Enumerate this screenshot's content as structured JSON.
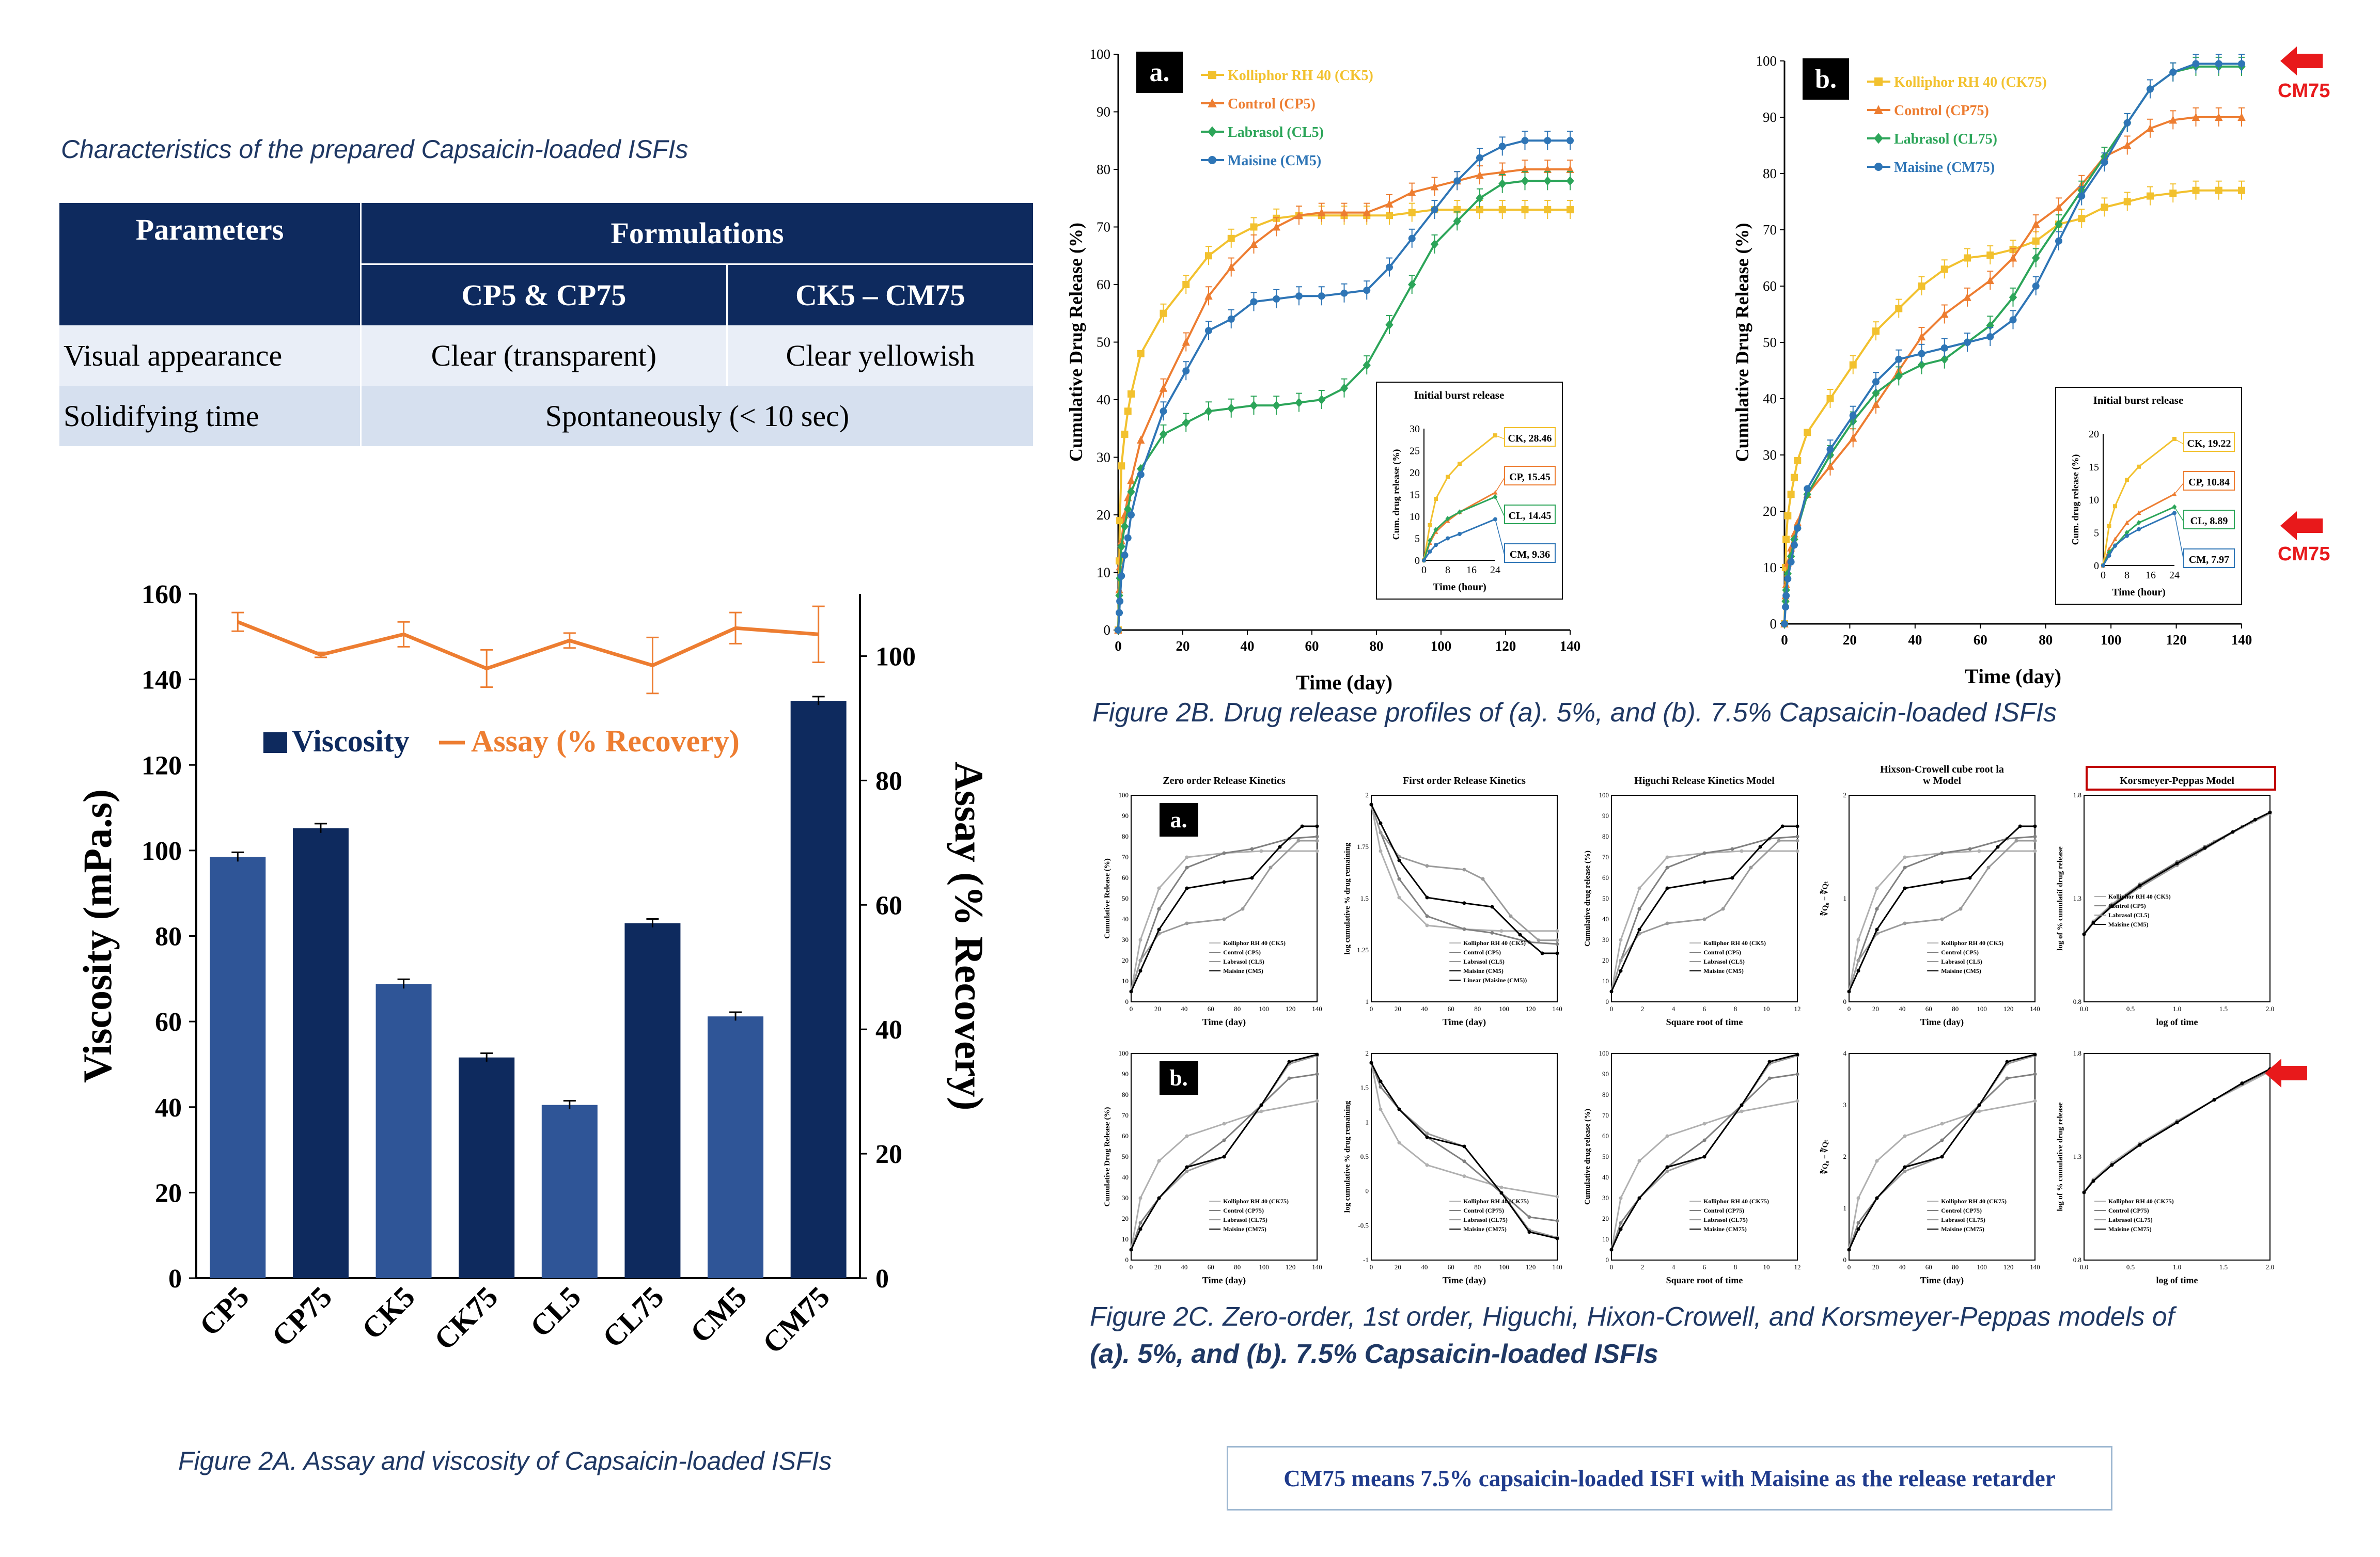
{
  "table": {
    "caption": "Characteristics of the prepared Capsaicin-loaded ISFIs",
    "h_parameters": "Parameters",
    "h_formulations": "Formulations",
    "h_col1": "CP5 & CP75",
    "h_col2": "CK5 – CM75",
    "rows": [
      {
        "param": "Visual appearance",
        "c1": "Clear (transparent)",
        "c2": "Clear yellowish"
      },
      {
        "param": "Solidifying time",
        "merged": "Spontaneously (< 10 sec)"
      }
    ]
  },
  "captions": {
    "fig2a": "Figure 2A. Assay and viscosity of Capsaicin-loaded ISFIs",
    "fig2b": "Figure 2B. Drug release profiles of (a). 5%, and (b). 7.5% Capsaicin-loaded ISFIs",
    "fig2c_line1": "Figure 2C. Zero-order, 1st order, Higuchi, Hixon-Crowell, and Korsmeyer-Peppas models of",
    "fig2c_line2": "(a). 5%, and (b). 7.5% Capsaicin-loaded ISFIs",
    "note": "CM75 means 7.5% capsaicin-loaded ISFI with Maisine as the release retarder",
    "cm75_label": "CM75"
  },
  "colors": {
    "navy": "#0e2a5e",
    "mid_blue": "#2f5597",
    "orange": "#ed7d31",
    "yellow": "#f2c12e",
    "green": "#2ca559",
    "blue": "#2e75b6",
    "red": "#e8191b"
  },
  "chart_data": [
    {
      "id": "fig2a",
      "type": "bar",
      "categories": [
        "CP5",
        "CP75",
        "CK5",
        "CK75",
        "CL5",
        "CL75",
        "CM5",
        "CM75"
      ],
      "series": [
        {
          "name": "Viscosity",
          "values": [
            98.5,
            105.2,
            68.8,
            51.6,
            40.5,
            83,
            61.2,
            135
          ],
          "errors": [
            0.6,
            0.6,
            0.6,
            0.5,
            0.5,
            0.5,
            0.5,
            0.5
          ]
        },
        {
          "name": "Assay (% Recovery)",
          "axis": "right",
          "values": [
            105.5,
            100.2,
            103.5,
            98,
            102.5,
            98.5,
            104.5,
            103.5
          ],
          "errors": [
            1.5,
            0.4,
            2,
            3,
            1.2,
            4.5,
            2.5,
            4.5
          ]
        }
      ],
      "ylabel": "Viscosity (mPa.s)",
      "y2label": "Assay (% Recovery)",
      "ylim": [
        0,
        160
      ],
      "y2lim": [
        0,
        110
      ],
      "yticks": [
        0,
        20,
        40,
        60,
        80,
        100,
        120,
        140,
        160
      ],
      "y2ticks": [
        0,
        20,
        40,
        60,
        80,
        100
      ]
    },
    {
      "id": "fig2b_a",
      "type": "line",
      "panel_label": "a.",
      "xlabel": "Time (day)",
      "ylabel": "Cumulative Drug Release (%)",
      "xlim": [
        0,
        140
      ],
      "ylim": [
        0,
        100
      ],
      "xticks": [
        0,
        20,
        40,
        60,
        80,
        100,
        120,
        140
      ],
      "yticks": [
        0,
        10,
        20,
        30,
        40,
        50,
        60,
        70,
        80,
        90,
        100
      ],
      "x": [
        0,
        0.33,
        0.5,
        1,
        2,
        3,
        4,
        7,
        14,
        21,
        28,
        35,
        42,
        49,
        56,
        63,
        70,
        77,
        84,
        91,
        98,
        105,
        112,
        119,
        126,
        133,
        140
      ],
      "series": [
        {
          "name": "Kolliphor RH 40 (CK5)",
          "color": "#f2c12e",
          "marker": "square",
          "values": [
            0,
            12,
            19,
            28.5,
            34,
            38,
            41,
            48,
            55,
            60,
            65,
            68,
            70,
            71.5,
            72,
            72,
            72,
            72,
            72,
            72.5,
            73,
            73,
            73,
            73,
            73,
            73,
            73
          ]
        },
        {
          "name": "Control (CP5)",
          "color": "#ed7d31",
          "marker": "triangle",
          "values": [
            0,
            7,
            11,
            15.5,
            20,
            23,
            26,
            33,
            42,
            50,
            58,
            63,
            67,
            70,
            72,
            72.5,
            72.5,
            72.5,
            74,
            76,
            77,
            78,
            79,
            79.5,
            80,
            80,
            80
          ]
        },
        {
          "name": "Labrasol (CL5)",
          "color": "#2ca559",
          "marker": "diamond",
          "values": [
            0,
            6,
            9,
            14.5,
            18,
            21,
            24,
            28,
            34,
            36,
            38,
            38.5,
            39,
            39,
            39.5,
            40,
            42,
            46,
            53,
            60,
            67,
            71,
            75,
            77.5,
            78,
            78,
            78
          ]
        },
        {
          "name": "Maisine (CM5)",
          "color": "#2e75b6",
          "marker": "circle",
          "values": [
            0,
            3,
            5,
            9.4,
            13,
            16,
            20,
            27,
            38,
            45,
            52,
            54,
            57,
            57.5,
            58,
            58,
            58.5,
            59,
            63,
            68,
            73,
            78,
            82,
            84,
            85,
            85,
            85
          ]
        }
      ],
      "inset": {
        "title": "Initial burst release",
        "xlabel": "Time (hour)",
        "ylabel": "Cum. drug release (%)",
        "xlim": [
          0,
          24
        ],
        "ylim": [
          0,
          30
        ],
        "xticks": [
          0,
          8,
          16,
          24
        ],
        "yticks": [
          0,
          5,
          10,
          15,
          20,
          25,
          30
        ],
        "x": [
          0,
          2,
          4,
          8,
          12,
          24
        ],
        "series": [
          {
            "label": "CK, 28.46",
            "values": [
              0,
              8,
              14,
              19,
              22,
              28.46
            ]
          },
          {
            "label": "CP, 15.45",
            "values": [
              0,
              4,
              6.5,
              9,
              11,
              15.45
            ]
          },
          {
            "label": "CL, 14.45",
            "values": [
              0,
              4.5,
              7,
              9.5,
              11,
              14.45
            ]
          },
          {
            "label": "CM, 9.36",
            "values": [
              0,
              2,
              3.5,
              5,
              6,
              9.36
            ]
          }
        ]
      }
    },
    {
      "id": "fig2b_b",
      "type": "line",
      "panel_label": "b.",
      "xlabel": "Time (day)",
      "ylabel": "Cumulative Drug Release (%)",
      "xlim": [
        0,
        140
      ],
      "ylim": [
        0,
        100
      ],
      "xticks": [
        0,
        20,
        40,
        60,
        80,
        100,
        120,
        140
      ],
      "yticks": [
        0,
        10,
        20,
        30,
        40,
        50,
        60,
        70,
        80,
        90,
        100
      ],
      "x": [
        0,
        0.33,
        0.5,
        1,
        2,
        3,
        4,
        7,
        14,
        21,
        28,
        35,
        42,
        49,
        56,
        63,
        70,
        77,
        84,
        91,
        98,
        105,
        112,
        119,
        126,
        133,
        140
      ],
      "series": [
        {
          "name": "Kolliphor RH 40 (CK75)",
          "color": "#f2c12e",
          "marker": "square",
          "values": [
            0,
            10,
            15,
            19.2,
            23,
            26,
            29,
            34,
            40,
            46,
            52,
            56,
            60,
            63,
            65,
            65.5,
            66.5,
            68,
            71,
            72,
            74,
            75,
            76,
            76.5,
            77,
            77,
            77
          ]
        },
        {
          "name": "Control (CP75)",
          "color": "#ed7d31",
          "marker": "triangle",
          "values": [
            0,
            5,
            7,
            10.8,
            13.5,
            16,
            18,
            23,
            28,
            33,
            39,
            45,
            51,
            55,
            58,
            61,
            65,
            71,
            74,
            78,
            83,
            85,
            88,
            89.5,
            90,
            90,
            90
          ]
        },
        {
          "name": "Labrasol (CL75)",
          "color": "#2ca559",
          "marker": "diamond",
          "values": [
            0,
            4,
            6,
            8.9,
            12,
            15,
            17,
            23,
            30,
            36,
            41,
            44,
            46,
            47,
            50,
            53,
            58,
            65,
            71,
            77,
            83,
            89,
            95,
            98,
            99,
            99,
            99
          ]
        },
        {
          "name": "Maisine (CM75)",
          "color": "#2e75b6",
          "marker": "circle",
          "values": [
            0,
            3,
            5,
            8,
            11,
            14,
            17,
            24,
            31,
            37,
            43,
            47,
            48,
            49,
            50,
            51,
            54,
            60,
            68,
            76,
            82,
            89,
            95,
            98,
            99.5,
            99.5,
            99.5
          ]
        }
      ],
      "inset": {
        "title": "Initial burst release",
        "xlabel": "Time (hour)",
        "ylabel": "Cum. drug release (%)",
        "xlim": [
          0,
          24
        ],
        "ylim": [
          0,
          20
        ],
        "xticks": [
          0,
          8,
          16,
          24
        ],
        "yticks": [
          0,
          5,
          10,
          15,
          20
        ],
        "x": [
          0,
          2,
          4,
          8,
          12,
          24
        ],
        "series": [
          {
            "label": "CK, 19.22",
            "values": [
              0,
              6,
              9,
              13,
              15,
              19.22
            ]
          },
          {
            "label": "CP, 10.84",
            "values": [
              0,
              2.5,
              4,
              6.5,
              8,
              10.84
            ]
          },
          {
            "label": "CL, 8.89",
            "values": [
              0,
              2,
              3,
              5,
              6.5,
              8.89
            ]
          },
          {
            "label": "CM, 7.97",
            "values": [
              0,
              1.5,
              3,
              4.5,
              5.5,
              7.97
            ]
          }
        ]
      }
    },
    {
      "id": "fig2c",
      "type": "line",
      "row_labels": [
        "a.",
        "b."
      ],
      "panels": [
        {
          "title": "Zero order Release Kinetics",
          "xlabel": "Time (day)",
          "ylabel": "Cumulative Release (%)",
          "xticks": [
            "0",
            "20",
            "40",
            "60",
            "80",
            "100",
            "120",
            "140"
          ],
          "yticks": [
            "0",
            "10",
            "20",
            "30",
            "40",
            "50",
            "60",
            "70",
            "80",
            "90",
            "100"
          ],
          "legend": [
            "Kolliphor RH 40 (CK5)",
            "Control (CP5)",
            "Labrasol (CL5)",
            "Maisine (CM5)"
          ]
        },
        {
          "title": "First order Release Kinetics",
          "xlabel": "Time (day)",
          "ylabel": "log cumulative % drug remaining",
          "xticks": [
            "0",
            "20",
            "40",
            "60",
            "80",
            "100",
            "120",
            "140"
          ],
          "yticks": [
            "1",
            "1.25",
            "1.5",
            "1.75",
            "2"
          ],
          "legend": [
            "Kolliphor RH 40 (CK5)",
            "Control (CP5)",
            "Labrasol (CL5)",
            "Maisine (CM5)",
            "Linear (Maisine (CM5))"
          ]
        },
        {
          "title": "Higuchi Release Kinetics Model",
          "xlabel": "Square root of time",
          "ylabel": "Cumulative drug release (%)",
          "xticks": [
            "0",
            "2",
            "4",
            "6",
            "8",
            "10",
            "12"
          ],
          "yticks": [
            "0",
            "10",
            "20",
            "30",
            "40",
            "50",
            "60",
            "70",
            "80",
            "90",
            "100"
          ],
          "legend": [
            "Kolliphor RH 40 (CK5)",
            "Control (CP5)",
            "Labrasol (CL5)",
            "Maisine (CM5)"
          ]
        },
        {
          "title": "Hixson-Crowell cube root law Model",
          "xlabel": "Time (day)",
          "ylabel": "∛Q₀ − ∛Qₜ",
          "xticks": [
            "0",
            "20",
            "40",
            "60",
            "80",
            "100",
            "120",
            "140"
          ],
          "yticks": [
            "0",
            "1",
            "2"
          ],
          "legend": [
            "Kolliphor RH 40 (CK5)",
            "Control (CP5)",
            "Labrasol (CL5)",
            "Maisine (CM5)"
          ]
        },
        {
          "title": "Korsmeyer-Peppas Model",
          "xlabel": "log of time",
          "ylabel": "log of % cumulatif drug release",
          "xticks": [
            "0.0",
            "0.5",
            "1.0",
            "1.5",
            "2.0"
          ],
          "yticks": [
            "0.8",
            "1.3",
            "1.8"
          ],
          "legend": [
            "Kolliphor RH 40 (CK5)",
            "Control (CP5)",
            "Labrasol (CL5)",
            "Maisine (CM5)"
          ]
        },
        {
          "xlabel": "Time (day)",
          "ylabel": "Cumulative Drug Release (%)",
          "xticks": [
            "0",
            "20",
            "40",
            "60",
            "80",
            "100",
            "120",
            "140"
          ],
          "yticks": [
            "0",
            "10",
            "20",
            "30",
            "40",
            "50",
            "60",
            "70",
            "80",
            "90",
            "100"
          ],
          "legend": [
            "Kolliphor RH 40 (CK75)",
            "Control (CP75)",
            "Labrasol (CL75)",
            "Maisine (CM75)"
          ]
        },
        {
          "xlabel": "Time (day)",
          "ylabel": "log cumulative % drug remaining",
          "xticks": [
            "0",
            "20",
            "40",
            "60",
            "80",
            "100",
            "120",
            "140"
          ],
          "yticks": [
            "-1",
            "-0.5",
            "0",
            "0.5",
            "1",
            "1.5",
            "2"
          ],
          "legend": [
            "Kolliphor RH 40 (CK75)",
            "Control (CP75)",
            "Labrasol (CL75)",
            "Maisine (CM75)"
          ]
        },
        {
          "xlabel": "Square root of time",
          "ylabel": "Cumulative drug release (%)",
          "xticks": [
            "0",
            "2",
            "4",
            "6",
            "8",
            "10",
            "12"
          ],
          "yticks": [
            "0",
            "10",
            "20",
            "30",
            "40",
            "50",
            "60",
            "70",
            "80",
            "90",
            "100"
          ],
          "legend": [
            "Kolliphor RH 40 (CK75)",
            "Control (CP75)",
            "Labrasol (CL75)",
            "Maisine (CM75)"
          ]
        },
        {
          "xlabel": "Time (day)",
          "ylabel": "∛Q₀ − ∛Qₜ",
          "xticks": [
            "0",
            "20",
            "40",
            "60",
            "80",
            "100",
            "120",
            "140"
          ],
          "yticks": [
            "0",
            "1",
            "2",
            "3",
            "4"
          ],
          "legend": [
            "Kolliphor RH 40 (CK75)",
            "Control (CP75)",
            "Labrasol (CL75)",
            "Maisine (CM75)"
          ]
        },
        {
          "xlabel": "log of time",
          "ylabel": "log of % cumulative drug release",
          "xticks": [
            "0.0",
            "0.5",
            "1.0",
            "1.5",
            "2.0"
          ],
          "yticks": [
            "0.8",
            "1.3",
            "1.8"
          ],
          "legend": [
            "Kolliphor RH 40 (CK75)",
            "Control (CP75)",
            "Labrasol (CL75)",
            "Maisine (CM75)"
          ]
        }
      ]
    }
  ]
}
